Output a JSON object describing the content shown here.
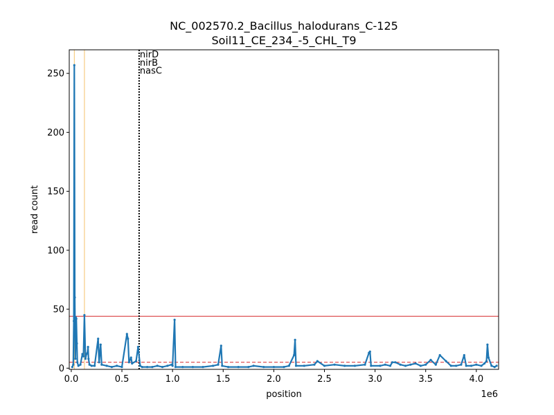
{
  "chart_data": {
    "type": "line",
    "title_line1": "NC_002570.2_Bacillus_halodurans_C-125",
    "title_line2": "Soil11_CE_234_-5_CHL_T9",
    "xlabel": "position",
    "ylabel": "read count",
    "x_offset_label": "1e6",
    "xlim": [
      -20000,
      4220000
    ],
    "ylim": [
      -1,
      270
    ],
    "x_scale": 1000000,
    "x_ticks": [
      0,
      0.5,
      1.0,
      1.5,
      2.0,
      2.5,
      3.0,
      3.5,
      4.0
    ],
    "x_tick_labels": [
      "0.0",
      "0.5",
      "1.0",
      "1.5",
      "2.0",
      "2.5",
      "3.0",
      "3.5",
      "4.0"
    ],
    "y_ticks": [
      0,
      50,
      100,
      150,
      200,
      250
    ],
    "y_tick_labels": [
      "0",
      "50",
      "100",
      "150",
      "200",
      "250"
    ],
    "grid": false,
    "series_color": "#1f77b4",
    "series": [
      {
        "points": [
          [
            10000,
            1
          ],
          [
            20000,
            3
          ],
          [
            25000,
            40
          ],
          [
            30000,
            257
          ],
          [
            35000,
            60
          ],
          [
            40000,
            8
          ],
          [
            45000,
            43
          ],
          [
            50000,
            42
          ],
          [
            55000,
            21
          ],
          [
            60000,
            5
          ],
          [
            70000,
            2
          ],
          [
            90000,
            3
          ],
          [
            110000,
            12
          ],
          [
            120000,
            10
          ],
          [
            130000,
            45
          ],
          [
            140000,
            8
          ],
          [
            150000,
            12
          ],
          [
            160000,
            13
          ],
          [
            165000,
            18
          ],
          [
            170000,
            8
          ],
          [
            180000,
            3
          ],
          [
            200000,
            2
          ],
          [
            230000,
            2
          ],
          [
            265000,
            25
          ],
          [
            275000,
            5
          ],
          [
            290000,
            20
          ],
          [
            300000,
            3
          ],
          [
            350000,
            2
          ],
          [
            400000,
            1
          ],
          [
            450000,
            2
          ],
          [
            500000,
            1
          ],
          [
            550000,
            29
          ],
          [
            560000,
            25
          ],
          [
            570000,
            5
          ],
          [
            590000,
            9
          ],
          [
            600000,
            4
          ],
          [
            640000,
            6
          ],
          [
            660000,
            18
          ],
          [
            680000,
            2
          ],
          [
            700000,
            1
          ],
          [
            750000,
            1
          ],
          [
            800000,
            1
          ],
          [
            850000,
            2
          ],
          [
            900000,
            1
          ],
          [
            950000,
            2
          ],
          [
            990000,
            3
          ],
          [
            1000000,
            2
          ],
          [
            1020000,
            41
          ],
          [
            1030000,
            1
          ],
          [
            1100000,
            1
          ],
          [
            1200000,
            1
          ],
          [
            1300000,
            1
          ],
          [
            1400000,
            2
          ],
          [
            1450000,
            3
          ],
          [
            1480000,
            19
          ],
          [
            1490000,
            2
          ],
          [
            1550000,
            1
          ],
          [
            1650000,
            1
          ],
          [
            1750000,
            1
          ],
          [
            1800000,
            2
          ],
          [
            1900000,
            1
          ],
          [
            2000000,
            1
          ],
          [
            2100000,
            1
          ],
          [
            2150000,
            2
          ],
          [
            2200000,
            11
          ],
          [
            2210000,
            24
          ],
          [
            2220000,
            2
          ],
          [
            2300000,
            2
          ],
          [
            2400000,
            3
          ],
          [
            2430000,
            6
          ],
          [
            2500000,
            2
          ],
          [
            2600000,
            3
          ],
          [
            2700000,
            2
          ],
          [
            2800000,
            2
          ],
          [
            2900000,
            3
          ],
          [
            2940000,
            13
          ],
          [
            2950000,
            14
          ],
          [
            2960000,
            2
          ],
          [
            3050000,
            2
          ],
          [
            3100000,
            3
          ],
          [
            3150000,
            2
          ],
          [
            3170000,
            5
          ],
          [
            3200000,
            5
          ],
          [
            3250000,
            3
          ],
          [
            3300000,
            2
          ],
          [
            3350000,
            3
          ],
          [
            3400000,
            4
          ],
          [
            3450000,
            2
          ],
          [
            3500000,
            3
          ],
          [
            3550000,
            7
          ],
          [
            3600000,
            3
          ],
          [
            3640000,
            11
          ],
          [
            3700000,
            6
          ],
          [
            3750000,
            2
          ],
          [
            3800000,
            2
          ],
          [
            3850000,
            3
          ],
          [
            3880000,
            11
          ],
          [
            3900000,
            2
          ],
          [
            3950000,
            2
          ],
          [
            4000000,
            3
          ],
          [
            4050000,
            2
          ],
          [
            4080000,
            4
          ],
          [
            4100000,
            6
          ],
          [
            4110000,
            20
          ],
          [
            4120000,
            9
          ],
          [
            4150000,
            2
          ],
          [
            4180000,
            1
          ],
          [
            4200000,
            2
          ]
        ]
      }
    ],
    "reference_lines": [
      {
        "orientation": "horizontal",
        "value": 44,
        "color": "#d62728",
        "style": "solid"
      },
      {
        "orientation": "horizontal",
        "value": 5,
        "color": "#d62728",
        "style": "dashed"
      },
      {
        "orientation": "vertical",
        "value": 30000,
        "color": "#f5c26b",
        "style": "solid"
      },
      {
        "orientation": "vertical",
        "value": 130000,
        "color": "#f5c26b",
        "style": "solid"
      },
      {
        "orientation": "vertical",
        "value": 670000,
        "color": "#000000",
        "style": "dotted"
      }
    ],
    "annotations": [
      {
        "text": "nirD",
        "x": 670000,
        "y": 266
      },
      {
        "text": "nirB",
        "x": 670000,
        "y": 259
      },
      {
        "text": "nasC",
        "x": 670000,
        "y": 252
      }
    ]
  }
}
